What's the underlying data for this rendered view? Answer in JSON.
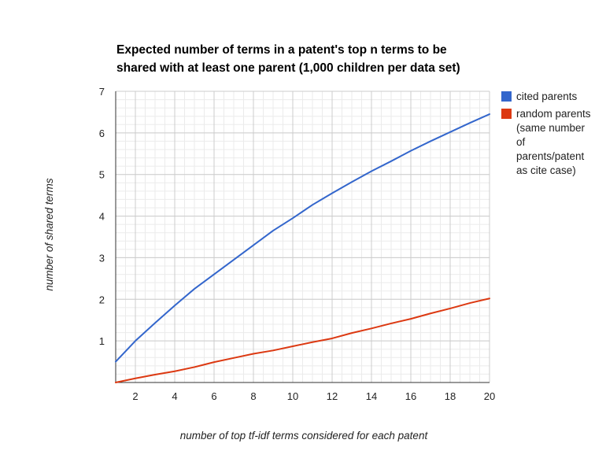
{
  "chart_data": {
    "type": "line",
    "title_lines": [
      "Expected number of terms in a patent's top n terms to be",
      "shared with at least one parent (1,000 children per data set)"
    ],
    "xlabel": "number of top tf-idf terms considered for each patent",
    "ylabel": "number of shared terms",
    "xlim": [
      1,
      20
    ],
    "ylim": [
      0,
      7
    ],
    "x_ticks": [
      2,
      4,
      6,
      8,
      10,
      12,
      14,
      16,
      18,
      20
    ],
    "y_ticks": [
      1,
      2,
      3,
      4,
      5,
      6,
      7
    ],
    "grid": true,
    "legend_position": "right",
    "x": [
      1,
      2,
      3,
      4,
      5,
      6,
      7,
      8,
      9,
      10,
      11,
      12,
      13,
      14,
      15,
      16,
      17,
      18,
      19,
      20
    ],
    "series": [
      {
        "name": "cited parents",
        "legend_lines": [
          "cited parents"
        ],
        "color": "#3366cc",
        "values": [
          0.5,
          1.0,
          1.43,
          1.85,
          2.25,
          2.6,
          2.95,
          3.3,
          3.65,
          3.95,
          4.27,
          4.55,
          4.82,
          5.08,
          5.32,
          5.57,
          5.8,
          6.02,
          6.24,
          6.45
        ]
      },
      {
        "name": "random parents (same number of parents/patent as cite case)",
        "legend_lines": [
          "random parents",
          "(same number",
          "of",
          "parents/patent",
          "as cite case)"
        ],
        "color": "#dc3912",
        "values": [
          0.0,
          0.1,
          0.19,
          0.27,
          0.37,
          0.49,
          0.59,
          0.69,
          0.77,
          0.87,
          0.97,
          1.06,
          1.19,
          1.3,
          1.42,
          1.53,
          1.66,
          1.78,
          1.91,
          2.02
        ]
      }
    ]
  }
}
